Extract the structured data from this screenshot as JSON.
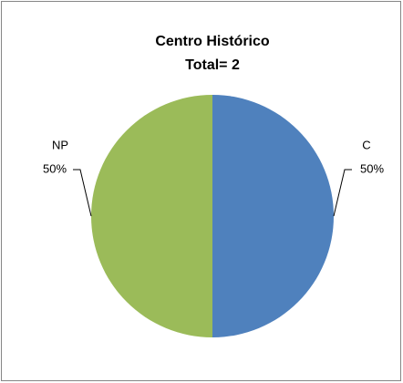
{
  "chart_data": {
    "type": "pie",
    "title": "Centro Histórico",
    "subtitle": "Total=  2",
    "categories": [
      "C",
      "NP"
    ],
    "values": [
      50,
      50
    ],
    "value_labels": [
      "50%",
      "50%"
    ],
    "colors": [
      "#4f81bd",
      "#9bbb59"
    ]
  }
}
